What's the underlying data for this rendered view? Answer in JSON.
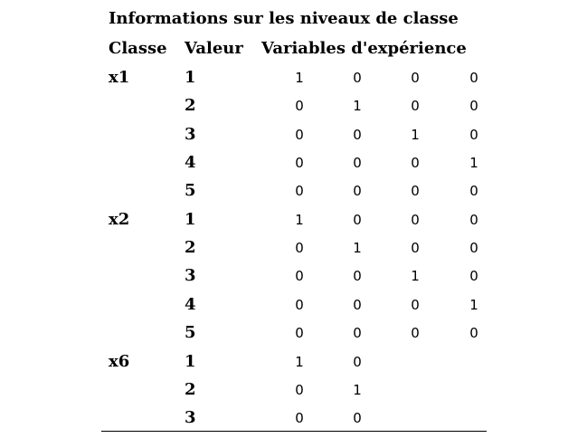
{
  "table": {
    "title": "Informations sur les niveaux de classe",
    "headers": {
      "classe": "Classe",
      "valeur": "Valeur",
      "variables": "Variables d'expérience"
    },
    "rows": [
      {
        "classe": "x1",
        "valeur": "1",
        "vars": [
          "1",
          "0",
          "0",
          "0"
        ]
      },
      {
        "classe": "",
        "valeur": "2",
        "vars": [
          "0",
          "1",
          "0",
          "0"
        ]
      },
      {
        "classe": "",
        "valeur": "3",
        "vars": [
          "0",
          "0",
          "1",
          "0"
        ]
      },
      {
        "classe": "",
        "valeur": "4",
        "vars": [
          "0",
          "0",
          "0",
          "1"
        ]
      },
      {
        "classe": "",
        "valeur": "5",
        "vars": [
          "0",
          "0",
          "0",
          "0"
        ]
      },
      {
        "classe": "x2",
        "valeur": "1",
        "vars": [
          "1",
          "0",
          "0",
          "0"
        ]
      },
      {
        "classe": "",
        "valeur": "2",
        "vars": [
          "0",
          "1",
          "0",
          "0"
        ]
      },
      {
        "classe": "",
        "valeur": "3",
        "vars": [
          "0",
          "0",
          "1",
          "0"
        ]
      },
      {
        "classe": "",
        "valeur": "4",
        "vars": [
          "0",
          "0",
          "0",
          "1"
        ]
      },
      {
        "classe": "",
        "valeur": "5",
        "vars": [
          "0",
          "0",
          "0",
          "0"
        ]
      },
      {
        "classe": "x6",
        "valeur": "1",
        "vars": [
          "1",
          "0"
        ]
      },
      {
        "classe": "",
        "valeur": "2",
        "vars": [
          "0",
          "1"
        ]
      },
      {
        "classe": "",
        "valeur": "3",
        "vars": [
          "0",
          "0"
        ]
      }
    ]
  }
}
